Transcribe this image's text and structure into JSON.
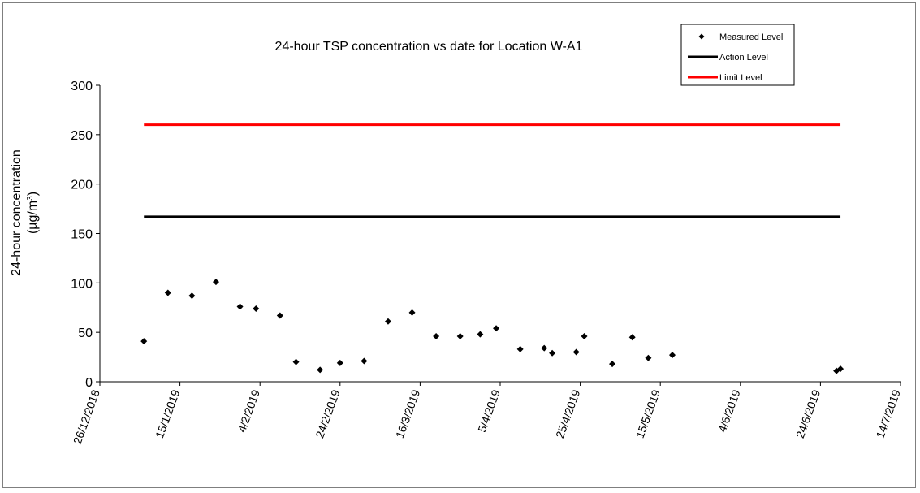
{
  "chart_data": {
    "type": "scatter",
    "title": "24-hour TSP concentration vs date for Location W-A1",
    "ylabel_line1": "24-hour concentration",
    "ylabel_line2_prefix": "(µg/m",
    "ylabel_line2_sup": "3",
    "ylabel_line2_suffix": ")",
    "ylim": [
      0,
      300
    ],
    "yticks": [
      "0",
      "50",
      "100",
      "150",
      "200",
      "250",
      "300"
    ],
    "xlim": [
      "2018-12-26",
      "2019-07-14"
    ],
    "xticks": [
      "26/12/2018",
      "15/1/2019",
      "4/2/2019",
      "24/2/2019",
      "16/3/2019",
      "5/4/2019",
      "25/4/2019",
      "15/5/2019",
      "4/6/2019",
      "24/6/2019",
      "14/7/2019"
    ],
    "legend_position": "top-right",
    "series": [
      {
        "name": "Measured Level",
        "marker": "diamond",
        "color": "#000000",
        "points": [
          {
            "x": "2019-01-06",
            "y": 41
          },
          {
            "x": "2019-01-12",
            "y": 90
          },
          {
            "x": "2019-01-18",
            "y": 87
          },
          {
            "x": "2019-01-24",
            "y": 101
          },
          {
            "x": "2019-01-30",
            "y": 76
          },
          {
            "x": "2019-02-03",
            "y": 74
          },
          {
            "x": "2019-02-09",
            "y": 67
          },
          {
            "x": "2019-02-13",
            "y": 20
          },
          {
            "x": "2019-02-19",
            "y": 12
          },
          {
            "x": "2019-02-24",
            "y": 19
          },
          {
            "x": "2019-03-02",
            "y": 21
          },
          {
            "x": "2019-03-08",
            "y": 61
          },
          {
            "x": "2019-03-14",
            "y": 70
          },
          {
            "x": "2019-03-20",
            "y": 46
          },
          {
            "x": "2019-03-26",
            "y": 46
          },
          {
            "x": "2019-03-31",
            "y": 48
          },
          {
            "x": "2019-04-04",
            "y": 54
          },
          {
            "x": "2019-04-10",
            "y": 33
          },
          {
            "x": "2019-04-16",
            "y": 34
          },
          {
            "x": "2019-04-18",
            "y": 29
          },
          {
            "x": "2019-04-24",
            "y": 30
          },
          {
            "x": "2019-04-26",
            "y": 46
          },
          {
            "x": "2019-05-03",
            "y": 18
          },
          {
            "x": "2019-05-08",
            "y": 45
          },
          {
            "x": "2019-05-12",
            "y": 24
          },
          {
            "x": "2019-05-18",
            "y": 27
          },
          {
            "x": "2019-06-28",
            "y": 11
          },
          {
            "x": "2019-06-29",
            "y": 13
          }
        ]
      },
      {
        "name": "Action Level",
        "type": "line",
        "color": "#000000",
        "points": [
          {
            "x": "2019-01-06",
            "y": 167
          },
          {
            "x": "2019-06-29",
            "y": 167
          }
        ]
      },
      {
        "name": "Limit Level",
        "type": "line",
        "color": "#ff0000",
        "points": [
          {
            "x": "2019-01-06",
            "y": 260
          },
          {
            "x": "2019-06-29",
            "y": 260
          }
        ]
      }
    ]
  }
}
